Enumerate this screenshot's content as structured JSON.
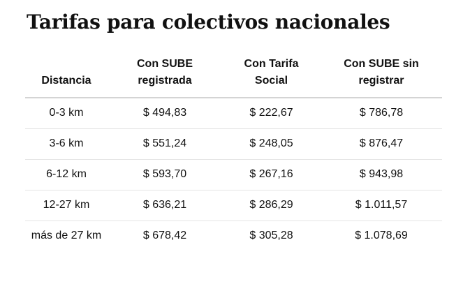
{
  "title": "Tarifas para colectivos nacionales",
  "table": {
    "headers": [
      "Distancia",
      "Con SUBE registrada",
      "Con Tarifa Social",
      "Con SUBE sin registrar"
    ],
    "rows": [
      [
        "0-3 km",
        "$ 494,83",
        "$ 222,67",
        "$ 786,78"
      ],
      [
        "3-6 km",
        "$ 551,24",
        "$ 248,05",
        "$ 876,47"
      ],
      [
        "6-12 km",
        "$ 593,70",
        "$ 267,16",
        "$ 943,98"
      ],
      [
        "12-27 km",
        "$ 636,21",
        "$ 286,29",
        "$ 1.011,57"
      ],
      [
        "más de 27 km",
        "$ 678,42",
        "$ 305,28",
        "$ 1.078,69"
      ]
    ]
  }
}
